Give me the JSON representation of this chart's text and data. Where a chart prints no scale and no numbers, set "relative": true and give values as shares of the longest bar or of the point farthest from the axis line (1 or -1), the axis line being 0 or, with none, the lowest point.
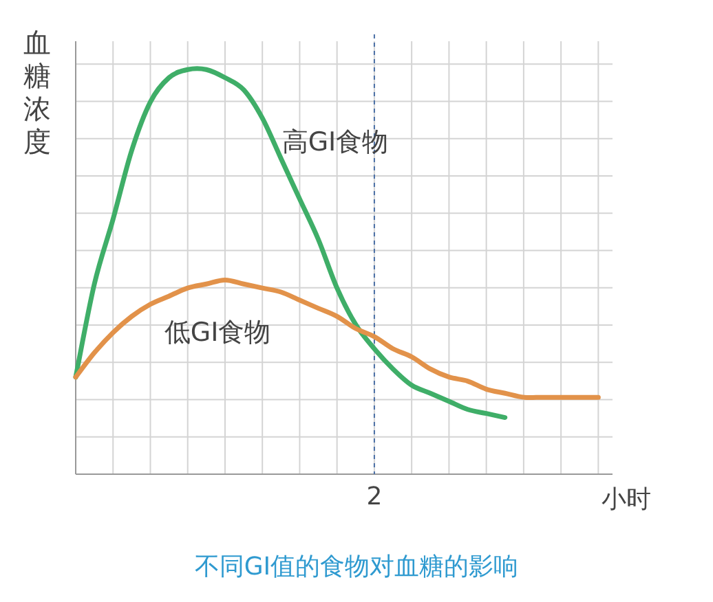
{
  "chart_data": {
    "type": "line",
    "title": "不同GI值的食物对血糖的影响",
    "xlabel": "小时",
    "ylabel": "血糖浓度",
    "relative": true,
    "grid": true,
    "line_style": "solid",
    "categories": [
      null,
      null,
      null,
      null,
      null,
      null,
      null,
      null,
      null,
      null,
      null,
      null,
      null,
      null,
      null,
      null,
      null,
      null,
      null,
      null,
      null,
      null,
      null,
      null,
      null,
      null,
      null,
      null,
      null
    ],
    "annotations": [
      "2"
    ],
    "series": [
      {
        "name": "高GI食物",
        "color": "#3fae68",
        "values": [
          0.24,
          0.47,
          0.63,
          0.8,
          0.92,
          0.98,
          1,
          1,
          0.98,
          0.95,
          0.88,
          0.78,
          0.68,
          0.58,
          0.46,
          0.37,
          0.31,
          0.26,
          0.22,
          0.2,
          0.18,
          0.16,
          0.15,
          0.14,
          null,
          null,
          null,
          null,
          null
        ]
      },
      {
        "name": "低GI食物",
        "color": "#e2924a",
        "values": [
          0.24,
          0.3,
          0.35,
          0.39,
          0.42,
          0.44,
          0.46,
          0.47,
          0.48,
          0.47,
          0.46,
          0.45,
          0.43,
          0.41,
          0.39,
          0.36,
          0.34,
          0.31,
          0.29,
          0.26,
          0.24,
          0.23,
          0.21,
          0.2,
          0.19,
          0.19,
          0.19,
          0.19,
          0.19
        ]
      }
    ]
  }
}
